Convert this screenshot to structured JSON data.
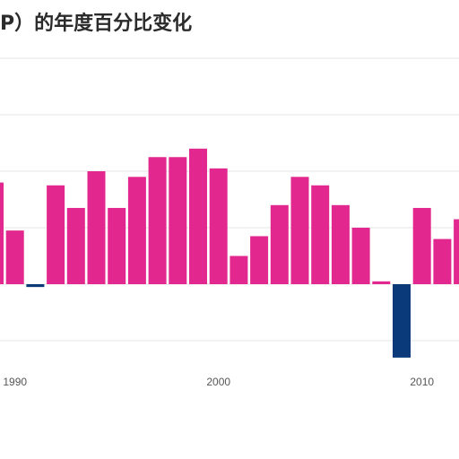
{
  "chart_data": {
    "type": "bar",
    "title": "P）的年度百分比变化",
    "xlabel": "",
    "ylabel": "",
    "x": [
      1989,
      1990,
      1991,
      1992,
      1993,
      1994,
      1995,
      1996,
      1997,
      1998,
      1999,
      2000,
      2001,
      2002,
      2003,
      2004,
      2005,
      2006,
      2007,
      2008,
      2009,
      2010,
      2011,
      2012
    ],
    "values": [
      3.6,
      1.9,
      -0.1,
      3.5,
      2.7,
      4.0,
      2.7,
      3.8,
      4.5,
      4.5,
      4.8,
      4.1,
      1.0,
      1.7,
      2.8,
      3.8,
      3.5,
      2.8,
      2.0,
      0.1,
      -2.6,
      2.7,
      1.6,
      2.3
    ],
    "xticks": [
      "1990",
      "2000",
      "2010"
    ],
    "ylim": [
      -2.6,
      6.0
    ],
    "grid": true,
    "legend": "none",
    "colors": {
      "positive": "#e2288f",
      "negative": "#0a3a7a",
      "grid": "#e6e6e6",
      "text": "#555555"
    }
  }
}
